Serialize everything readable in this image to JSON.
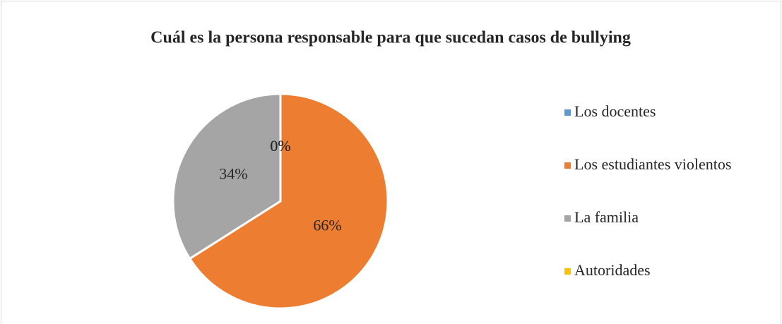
{
  "chart_data": {
    "type": "pie",
    "title": "Cuál es la persona responsable para que sucedan casos de bullying",
    "categories": [
      "Los docentes",
      "Los estudiantes violentos",
      "La familia",
      "Autoridades"
    ],
    "values": [
      0,
      66,
      34,
      0
    ],
    "value_labels": [
      "0%",
      "66%",
      "34%",
      "0%"
    ],
    "colors": [
      "#5b9bd5",
      "#ed7d31",
      "#a5a5a5",
      "#ffc000"
    ],
    "legend": "right"
  }
}
